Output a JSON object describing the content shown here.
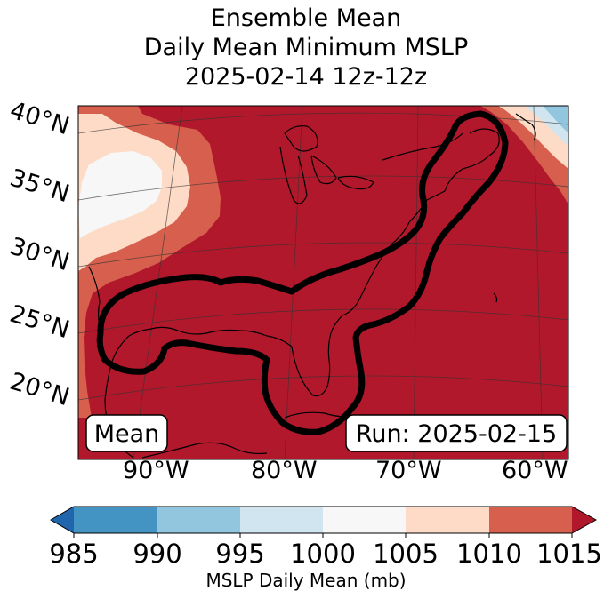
{
  "title": {
    "line1": "Ensemble Mean",
    "line2": "Daily Mean Minimum MSLP",
    "line3": "2025-02-14 12z-12z"
  },
  "map": {
    "lat_labels": [
      "40°N",
      "35°N",
      "30°N",
      "25°N",
      "20°N"
    ],
    "lon_labels": [
      "90°W",
      "80°W",
      "70°W",
      "60°W"
    ],
    "mean_box": "Mean",
    "run_box": "Run: 2025-02-15",
    "field_colors": {
      "lt1010": "#d6604d",
      "lt1005": "#fddbc7",
      "lt1000": "#f7f7f7",
      "lt995": "#d1e5f0",
      "lt990": "#92c5de",
      "ge1010": "#b2182b"
    }
  },
  "colorbar": {
    "ticks": [
      "985",
      "990",
      "995",
      "1000",
      "1005",
      "1010",
      "1015"
    ],
    "colors": [
      "#2166ac",
      "#4393c3",
      "#92c5de",
      "#d1e5f0",
      "#f7f7f7",
      "#fddbc7",
      "#d6604d",
      "#b2182b"
    ],
    "label": "MSLP Daily Mean (mb)"
  }
}
